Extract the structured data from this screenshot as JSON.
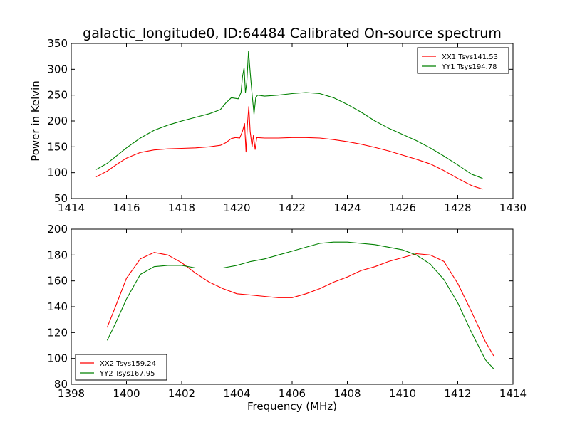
{
  "figure": {
    "title": "galactic_longitude0, ID:64484 Calibrated On-source spectrum",
    "ylabel": "Power in Kelvin",
    "xlabel": "Frequency (MHz)"
  },
  "colors": {
    "red": "#ff0000",
    "green": "#008000"
  },
  "chart_data": [
    {
      "type": "line",
      "title": "galactic_longitude0, ID:64484 Calibrated On-source spectrum",
      "ylabel": "Power in Kelvin",
      "xlabel": "",
      "xlim": [
        1414,
        1430
      ],
      "ylim": [
        50,
        350
      ],
      "xticks": [
        "1414",
        "1416",
        "1418",
        "1420",
        "1422",
        "1424",
        "1426",
        "1428",
        "1430"
      ],
      "yticks": [
        "50",
        "100",
        "150",
        "200",
        "250",
        "300",
        "350"
      ],
      "legend": "top-right",
      "series": [
        {
          "name": "XX1 Tsys141.53",
          "color": "#ff0000",
          "points": [
            [
              1414.9,
              92
            ],
            [
              1415.3,
              103
            ],
            [
              1415.7,
              118
            ],
            [
              1416.0,
              128
            ],
            [
              1416.5,
              139
            ],
            [
              1417.0,
              144
            ],
            [
              1417.5,
              146
            ],
            [
              1418.0,
              147
            ],
            [
              1418.5,
              148
            ],
            [
              1419.0,
              150
            ],
            [
              1419.4,
              153
            ],
            [
              1419.6,
              158
            ],
            [
              1419.8,
              166
            ],
            [
              1419.95,
              168
            ],
            [
              1420.1,
              167
            ],
            [
              1420.2,
              180
            ],
            [
              1420.28,
              195
            ],
            [
              1420.33,
              140
            ],
            [
              1420.38,
              192
            ],
            [
              1420.43,
              228
            ],
            [
              1420.48,
              180
            ],
            [
              1420.55,
              150
            ],
            [
              1420.6,
              172
            ],
            [
              1420.66,
              145
            ],
            [
              1420.72,
              168
            ],
            [
              1421.0,
              167
            ],
            [
              1421.5,
              167
            ],
            [
              1422.0,
              168
            ],
            [
              1422.5,
              168
            ],
            [
              1423.0,
              167
            ],
            [
              1423.5,
              164
            ],
            [
              1424.0,
              160
            ],
            [
              1424.5,
              155
            ],
            [
              1425.0,
              149
            ],
            [
              1425.5,
              142
            ],
            [
              1426.0,
              134
            ],
            [
              1426.5,
              126
            ],
            [
              1427.0,
              117
            ],
            [
              1427.5,
              104
            ],
            [
              1428.0,
              89
            ],
            [
              1428.5,
              75
            ],
            [
              1428.9,
              68
            ]
          ]
        },
        {
          "name": "YY1 Tsys194.78",
          "color": "#008000",
          "points": [
            [
              1414.9,
              106
            ],
            [
              1415.3,
              118
            ],
            [
              1415.7,
              135
            ],
            [
              1416.0,
              148
            ],
            [
              1416.5,
              167
            ],
            [
              1417.0,
              182
            ],
            [
              1417.5,
              192
            ],
            [
              1418.0,
              200
            ],
            [
              1418.5,
              207
            ],
            [
              1419.0,
              214
            ],
            [
              1419.4,
              222
            ],
            [
              1419.6,
              235
            ],
            [
              1419.8,
              245
            ],
            [
              1420.05,
              243
            ],
            [
              1420.15,
              255
            ],
            [
              1420.2,
              285
            ],
            [
              1420.26,
              303
            ],
            [
              1420.31,
              255
            ],
            [
              1420.36,
              275
            ],
            [
              1420.42,
              335
            ],
            [
              1420.48,
              295
            ],
            [
              1420.55,
              252
            ],
            [
              1420.62,
              213
            ],
            [
              1420.68,
              245
            ],
            [
              1420.75,
              250
            ],
            [
              1421.0,
              248
            ],
            [
              1421.5,
              250
            ],
            [
              1422.0,
              253
            ],
            [
              1422.5,
              255
            ],
            [
              1423.0,
              253
            ],
            [
              1423.5,
              245
            ],
            [
              1424.0,
              232
            ],
            [
              1424.5,
              217
            ],
            [
              1425.0,
              200
            ],
            [
              1425.5,
              186
            ],
            [
              1426.0,
              174
            ],
            [
              1426.5,
              162
            ],
            [
              1427.0,
              148
            ],
            [
              1427.5,
              132
            ],
            [
              1428.0,
              115
            ],
            [
              1428.5,
              97
            ],
            [
              1428.9,
              89
            ]
          ]
        }
      ]
    },
    {
      "type": "line",
      "title": "",
      "ylabel": "",
      "xlabel": "Frequency (MHz)",
      "xlim": [
        1398,
        1414
      ],
      "ylim": [
        80,
        200
      ],
      "xticks": [
        "1398",
        "1400",
        "1402",
        "1404",
        "1406",
        "1408",
        "1410",
        "1412",
        "1414"
      ],
      "yticks": [
        "80",
        "100",
        "120",
        "140",
        "160",
        "180",
        "200"
      ],
      "legend": "bottom-left",
      "series": [
        {
          "name": "XX2 Tsys159.24",
          "color": "#ff0000",
          "points": [
            [
              1399.3,
              124
            ],
            [
              1399.6,
              140
            ],
            [
              1400.0,
              162
            ],
            [
              1400.5,
              177
            ],
            [
              1401.0,
              182
            ],
            [
              1401.5,
              180
            ],
            [
              1402.0,
              174
            ],
            [
              1402.5,
              166
            ],
            [
              1403.0,
              159
            ],
            [
              1403.5,
              154
            ],
            [
              1404.0,
              150
            ],
            [
              1404.5,
              149
            ],
            [
              1405.0,
              148
            ],
            [
              1405.5,
              147
            ],
            [
              1406.0,
              147
            ],
            [
              1406.5,
              150
            ],
            [
              1407.0,
              154
            ],
            [
              1407.5,
              159
            ],
            [
              1408.0,
              163
            ],
            [
              1408.5,
              168
            ],
            [
              1409.0,
              171
            ],
            [
              1409.5,
              175
            ],
            [
              1410.0,
              178
            ],
            [
              1410.5,
              181
            ],
            [
              1411.0,
              180
            ],
            [
              1411.5,
              175
            ],
            [
              1412.0,
              158
            ],
            [
              1412.5,
              136
            ],
            [
              1413.0,
              113
            ],
            [
              1413.3,
              102
            ]
          ]
        },
        {
          "name": "YY2 Tsys167.95",
          "color": "#008000",
          "points": [
            [
              1399.3,
              114
            ],
            [
              1399.6,
              127
            ],
            [
              1400.0,
              146
            ],
            [
              1400.5,
              165
            ],
            [
              1401.0,
              171
            ],
            [
              1401.5,
              172
            ],
            [
              1402.0,
              172
            ],
            [
              1402.5,
              170
            ],
            [
              1403.0,
              170
            ],
            [
              1403.5,
              170
            ],
            [
              1404.0,
              172
            ],
            [
              1404.5,
              175
            ],
            [
              1405.0,
              177
            ],
            [
              1405.5,
              180
            ],
            [
              1406.0,
              183
            ],
            [
              1406.5,
              186
            ],
            [
              1407.0,
              189
            ],
            [
              1407.5,
              190
            ],
            [
              1408.0,
              190
            ],
            [
              1408.5,
              189
            ],
            [
              1409.0,
              188
            ],
            [
              1409.5,
              186
            ],
            [
              1410.0,
              184
            ],
            [
              1410.5,
              180
            ],
            [
              1411.0,
              173
            ],
            [
              1411.5,
              161
            ],
            [
              1412.0,
              143
            ],
            [
              1412.5,
              120
            ],
            [
              1413.0,
              99
            ],
            [
              1413.3,
              92
            ]
          ]
        }
      ]
    }
  ]
}
